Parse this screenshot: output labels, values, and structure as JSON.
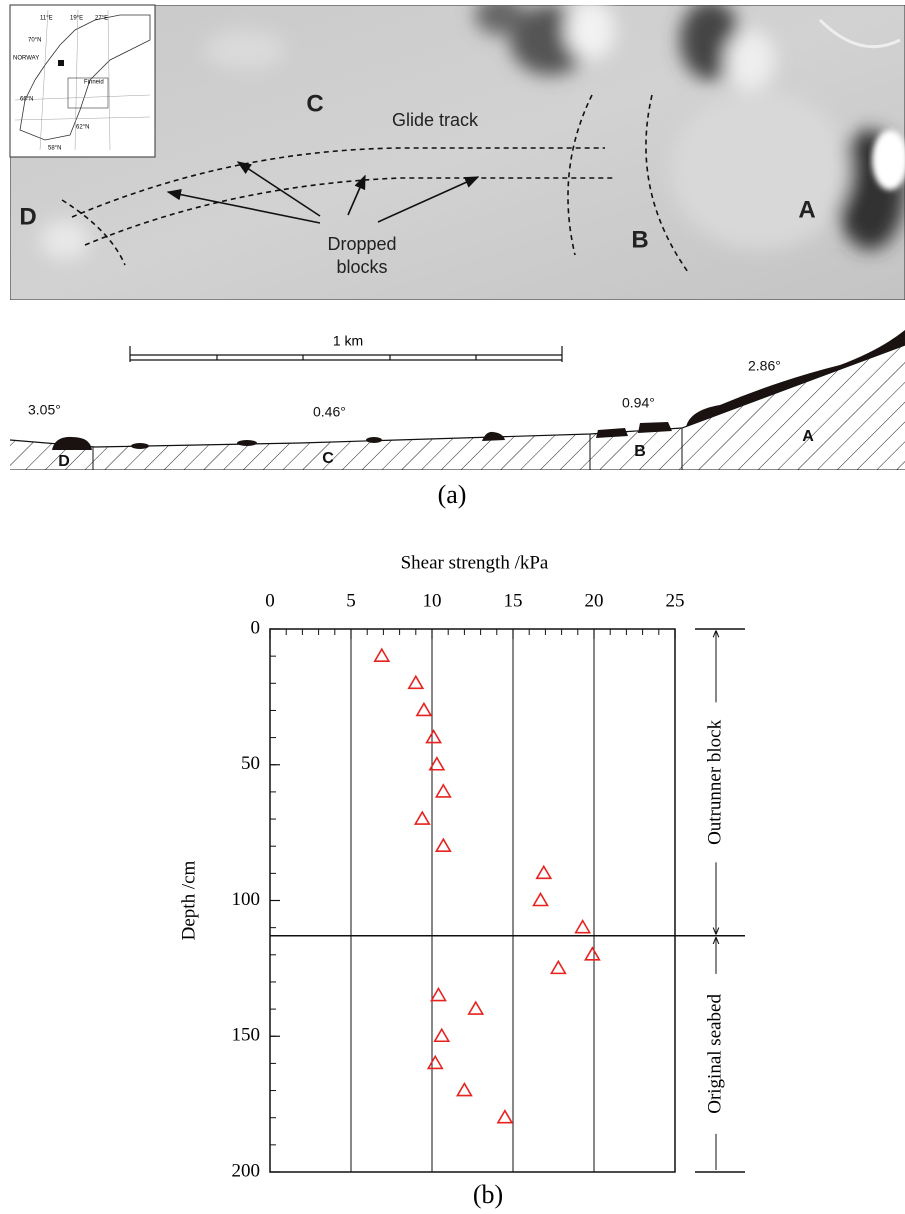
{
  "figure_a": {
    "map": {
      "inset": {
        "lon_labels": [
          "11°E",
          "19°E",
          "27°E"
        ],
        "lat_labels": [
          "70°N",
          "66°N",
          "62°N",
          "58°N"
        ],
        "country": "NORWAY",
        "place": "Finneid"
      },
      "labels": {
        "C": "C",
        "glide_track": "Glide track",
        "D": "D",
        "dropped_blocks": [
          "Dropped",
          "blocks"
        ],
        "B": "B",
        "A": "A"
      }
    },
    "section": {
      "scale": "1 km",
      "angles": [
        "3.05°",
        "0.46°",
        "0.94°",
        "2.86°"
      ],
      "zones": [
        "D",
        "C",
        "B",
        "A"
      ]
    },
    "caption": "(a)"
  },
  "chart_data": {
    "type": "scatter",
    "xlabel": "Shear strength /kPa",
    "ylabel": "Depth /cm",
    "x": [
      6.9,
      9.0,
      9.5,
      10.1,
      10.3,
      10.7,
      9.4,
      10.7,
      16.9,
      16.7,
      19.3,
      19.9,
      17.8,
      10.4,
      12.7,
      10.6,
      10.2,
      12.0,
      14.5
    ],
    "values": [
      10,
      20,
      30,
      40,
      50,
      60,
      70,
      80,
      90,
      100,
      110,
      120,
      125,
      135,
      140,
      150,
      160,
      170,
      180
    ],
    "color": "#e8231f",
    "marker": "triangle",
    "xlim": [
      0,
      25
    ],
    "xticks": [
      0,
      5,
      10,
      15,
      20,
      25
    ],
    "x_minor_step": 1,
    "x_axis": "top",
    "ylim": [
      0,
      200
    ],
    "yticks": [
      0,
      50,
      100,
      150,
      200
    ],
    "y_minor_step": 10,
    "y_inverted": true,
    "grid": "x",
    "boundary_depth": 113,
    "zones": [
      "Outrunner block",
      "Original seabed"
    ],
    "caption": "(b)"
  }
}
